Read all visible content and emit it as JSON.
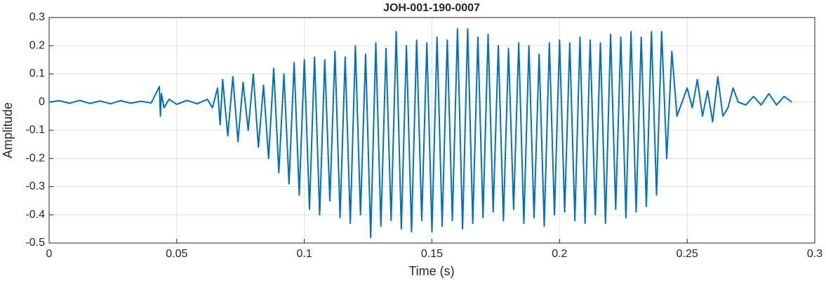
{
  "chart_data": {
    "type": "line",
    "title": "JOH-001-190-0007",
    "x_label": "Time (s)",
    "y_label": "Amplitude",
    "x": [
      0,
      0.004,
      0.008,
      0.012,
      0.016,
      0.02,
      0.024,
      0.028,
      0.032,
      0.036,
      0.04,
      0.0432,
      0.0436,
      0.044,
      0.045,
      0.047,
      0.05,
      0.054,
      0.058,
      0.062,
      0.064,
      0.066,
      0.067,
      0.068,
      0.07,
      0.072,
      0.074,
      0.076,
      0.078,
      0.08,
      0.082,
      0.084,
      0.086,
      0.088,
      0.09,
      0.092,
      0.094,
      0.096,
      0.098,
      0.1,
      0.102,
      0.104,
      0.106,
      0.108,
      0.11,
      0.112,
      0.114,
      0.116,
      0.118,
      0.12,
      0.122,
      0.124,
      0.126,
      0.128,
      0.13,
      0.132,
      0.134,
      0.136,
      0.138,
      0.14,
      0.142,
      0.144,
      0.146,
      0.148,
      0.15,
      0.152,
      0.154,
      0.156,
      0.158,
      0.16,
      0.162,
      0.164,
      0.166,
      0.168,
      0.17,
      0.172,
      0.174,
      0.176,
      0.178,
      0.18,
      0.182,
      0.184,
      0.186,
      0.188,
      0.19,
      0.192,
      0.194,
      0.196,
      0.198,
      0.2,
      0.202,
      0.204,
      0.206,
      0.208,
      0.21,
      0.212,
      0.214,
      0.216,
      0.218,
      0.22,
      0.222,
      0.224,
      0.226,
      0.228,
      0.23,
      0.232,
      0.234,
      0.236,
      0.238,
      0.24,
      0.242,
      0.244,
      0.246,
      0.248,
      0.25,
      0.252,
      0.254,
      0.256,
      0.258,
      0.26,
      0.262,
      0.264,
      0.266,
      0.268,
      0.27,
      0.273,
      0.276,
      0.279,
      0.282,
      0.285,
      0.288,
      0.291
    ],
    "series": [
      {
        "color": "#0072bd",
        "values": [
          0,
          0.005,
          -0.004,
          0.006,
          -0.005,
          0.004,
          -0.006,
          0.005,
          -0.004,
          0.003,
          -0.003,
          0.055,
          -0.05,
          0.03,
          -0.02,
          0.01,
          -0.008,
          0.006,
          -0.006,
          0.01,
          -0.02,
          0.05,
          -0.08,
          0.08,
          -0.12,
          0.09,
          -0.14,
          0.07,
          -0.1,
          0.1,
          -0.16,
          0.06,
          -0.2,
          0.12,
          -0.25,
          0.1,
          -0.29,
          0.14,
          -0.33,
          0.15,
          -0.38,
          0.16,
          -0.4,
          0.15,
          -0.35,
          0.18,
          -0.41,
          0.16,
          -0.43,
          0.2,
          -0.4,
          0.17,
          -0.48,
          0.21,
          -0.44,
          0.19,
          -0.42,
          0.25,
          -0.45,
          0.2,
          -0.46,
          0.22,
          -0.42,
          0.21,
          -0.46,
          0.23,
          -0.44,
          0.22,
          -0.42,
          0.26,
          -0.45,
          0.26,
          -0.43,
          0.23,
          -0.41,
          0.24,
          -0.39,
          0.2,
          -0.42,
          0.19,
          -0.38,
          0.21,
          -0.43,
          0.2,
          -0.41,
          0.17,
          -0.44,
          0.21,
          -0.4,
          0.22,
          -0.39,
          0.21,
          -0.42,
          0.23,
          -0.43,
          0.22,
          -0.4,
          0.21,
          -0.43,
          0.24,
          -0.38,
          0.23,
          -0.41,
          0.25,
          -0.39,
          0.23,
          -0.37,
          0.25,
          -0.33,
          0.25,
          -0.2,
          0.18,
          -0.05,
          0,
          0.05,
          -0.02,
          0.08,
          -0.05,
          0.04,
          -0.07,
          0.09,
          -0.05,
          -0.02,
          0.05,
          0,
          -0.01,
          0.02,
          -0.01,
          0.03,
          -0.01,
          0.02,
          0
        ]
      }
    ],
    "xlim": [
      0,
      0.3
    ],
    "xticks": [
      0,
      0.05,
      0.1,
      0.15,
      0.2,
      0.25,
      0.3
    ],
    "ylim": [
      -0.5,
      0.3
    ],
    "yticks": [
      -0.5,
      -0.4,
      -0.3,
      -0.2,
      -0.1,
      0,
      0.1,
      0.2,
      0.3
    ],
    "grid": true
  }
}
